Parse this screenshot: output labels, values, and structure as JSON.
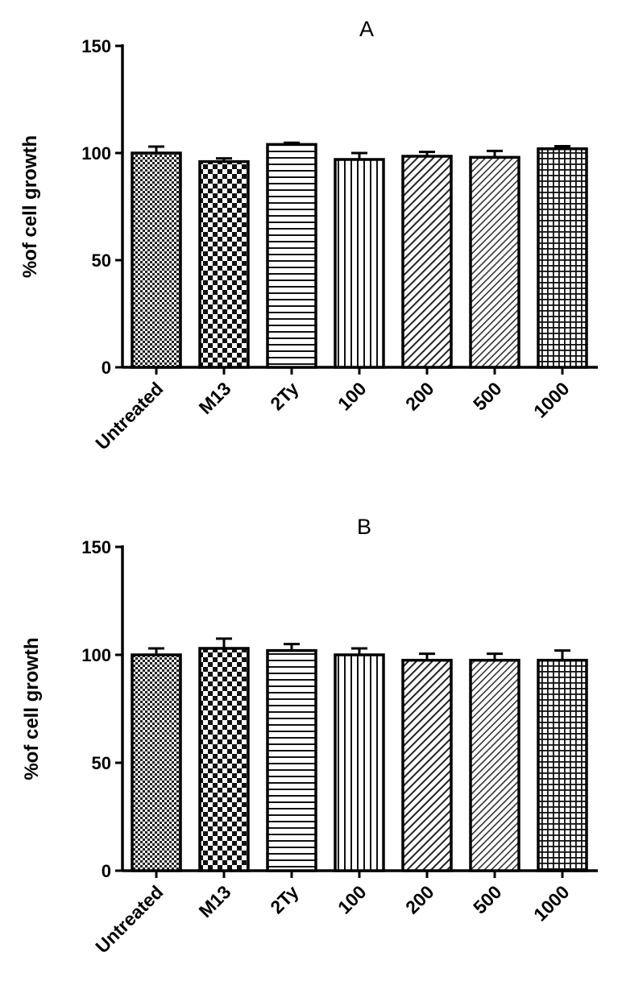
{
  "chart_data": [
    {
      "type": "bar",
      "title": "A",
      "ylabel": "%of cell growth",
      "xlabel": "",
      "ylim": [
        0,
        150
      ],
      "yticks": [
        0,
        50,
        100,
        150
      ],
      "categories": [
        "Untreated",
        "M13",
        "2Ty",
        "100",
        "200",
        "500",
        "1000"
      ],
      "values": [
        100,
        96,
        104,
        97,
        98.5,
        98,
        102
      ],
      "errors": [
        3,
        1.5,
        0.8,
        3,
        2,
        3,
        1.2
      ],
      "patterns": [
        "fine-checker",
        "checker",
        "horizontal-lines",
        "vertical-lines",
        "diagonal-lines",
        "diagonal-lines-fine",
        "grid"
      ],
      "grid": false,
      "legend": "none"
    },
    {
      "type": "bar",
      "title": "B",
      "ylabel": "%of cell growth",
      "xlabel": "",
      "ylim": [
        0,
        150
      ],
      "yticks": [
        0,
        50,
        100,
        150
      ],
      "categories": [
        "Untreated",
        "M13",
        "2Ty",
        "100",
        "200",
        "500",
        "1000"
      ],
      "values": [
        100,
        103,
        102,
        100,
        97.5,
        97.5,
        97.5
      ],
      "errors": [
        3,
        4.5,
        3,
        3,
        3,
        3,
        4.5
      ],
      "patterns": [
        "fine-checker",
        "checker",
        "horizontal-lines",
        "vertical-lines",
        "diagonal-lines",
        "diagonal-lines-fine",
        "grid"
      ],
      "grid": false,
      "legend": "none"
    }
  ]
}
